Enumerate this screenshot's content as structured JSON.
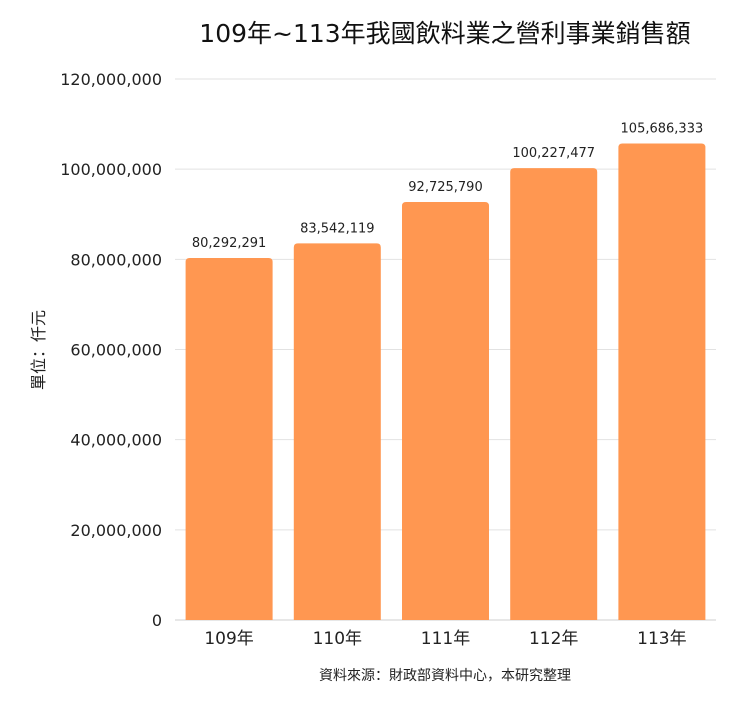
{
  "chart_data": {
    "type": "bar",
    "title": "109年~113年我國飲料業之營利事業銷售額",
    "ylabel": "單位：仟元",
    "xlabel": "",
    "source": "資料來源：財政部資料中心，本研究整理",
    "categories": [
      "109年",
      "110年",
      "111年",
      "112年",
      "113年"
    ],
    "values": [
      80292291,
      83542119,
      92725790,
      100227477,
      105686333
    ],
    "data_labels": [
      "80,292,291",
      "83,542,119",
      "92,725,790",
      "100,227,477",
      "105,686,333"
    ],
    "yticks": [
      "0",
      "20,000,000",
      "40,000,000",
      "60,000,000",
      "80,000,000",
      "100,000,000",
      "120,000,000"
    ],
    "ylim": [
      0,
      120000000
    ],
    "grid": true,
    "legend": "none",
    "colors": {
      "bar": "#FF9751"
    }
  }
}
